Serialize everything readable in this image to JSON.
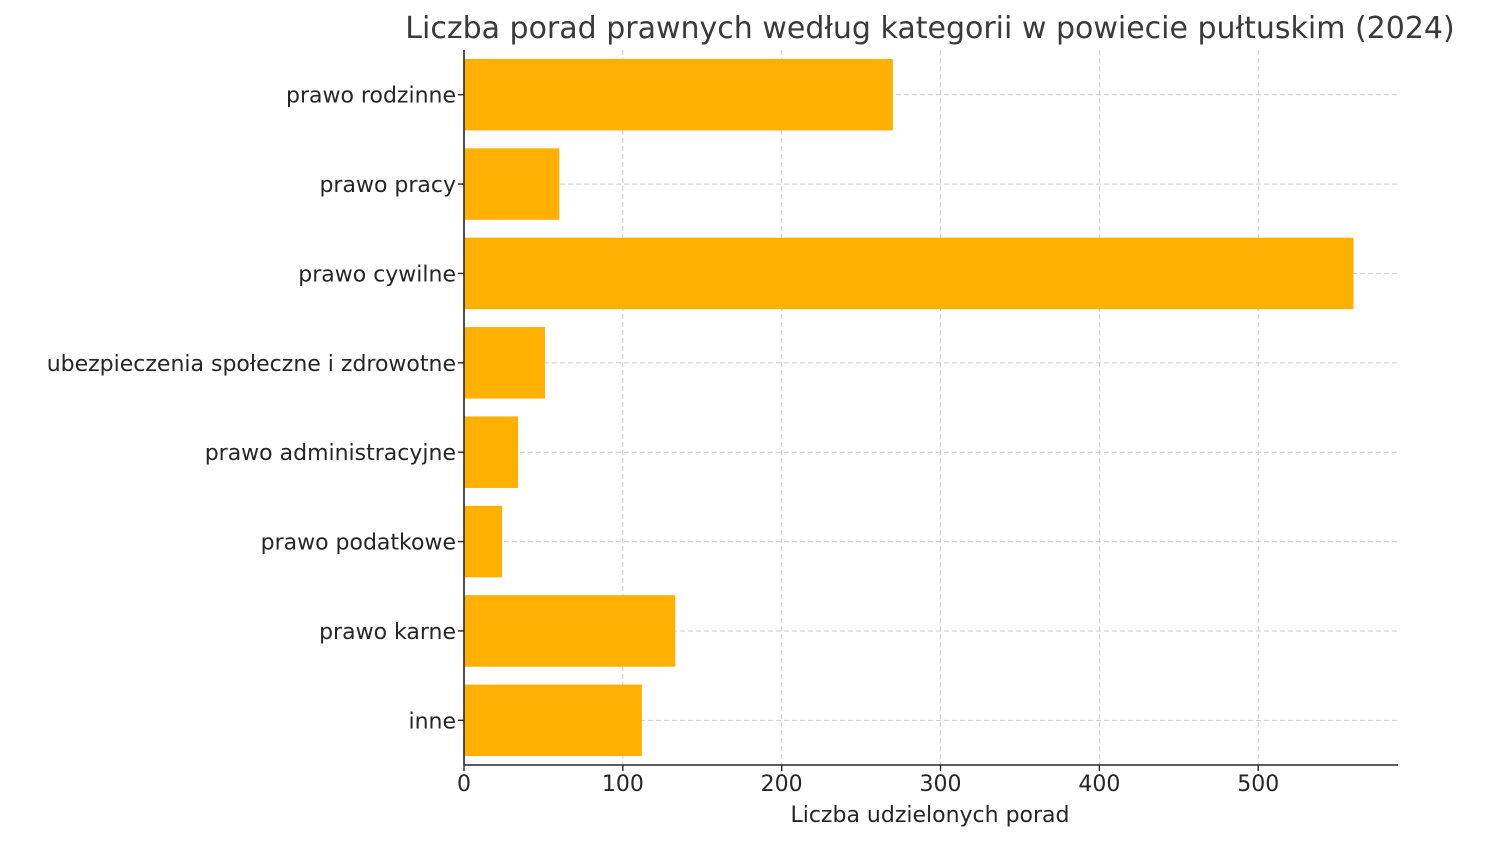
{
  "chart_data": {
    "type": "bar",
    "orientation": "horizontal",
    "title": "Liczba porad prawnych według kategorii w powiecie pułtuskim (2024)",
    "xlabel": "Liczba udzielonych porad",
    "ylabel": "",
    "categories": [
      "prawo rodzinne",
      "prawo pracy",
      "prawo cywilne",
      "ubezpieczenia społeczne i zdrowotne",
      "prawo administracyjne",
      "prawo podatkowe",
      "prawo karne",
      "inne"
    ],
    "values": [
      270,
      60,
      560,
      51,
      34,
      24,
      133,
      112
    ],
    "xlim": [
      0,
      588
    ],
    "xticks": [
      0,
      100,
      200,
      300,
      400,
      500
    ],
    "grid": true,
    "bar_color": "#FFB000"
  }
}
